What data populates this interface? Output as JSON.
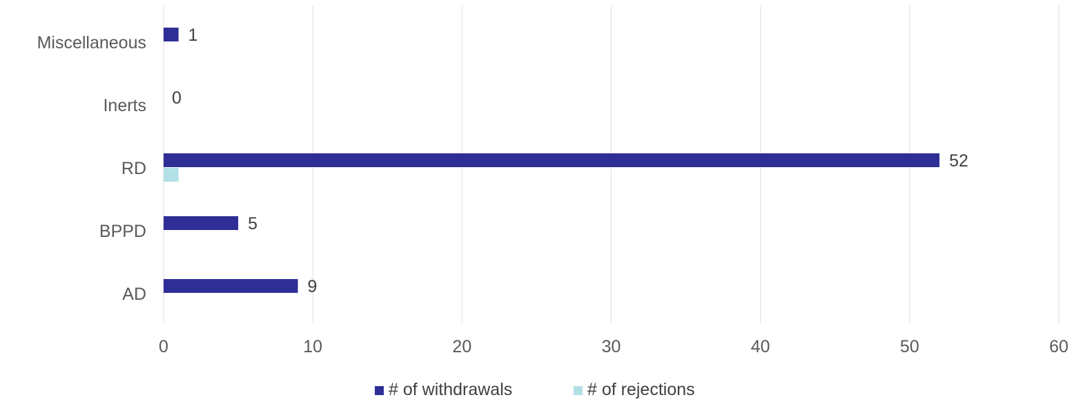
{
  "chart_data": {
    "type": "bar",
    "orientation": "horizontal",
    "categories": [
      "Miscellaneous",
      "Inerts",
      "RD",
      "BPPD",
      "AD"
    ],
    "series": [
      {
        "name": "# of withdrawals",
        "color": "#2e2e96",
        "values": [
          1,
          0,
          52,
          5,
          9
        ],
        "data_labels": [
          "1",
          "0",
          "52",
          "5",
          "9"
        ]
      },
      {
        "name": "# of rejections",
        "color": "#b3e0e6",
        "values": [
          0,
          0,
          1,
          0,
          0
        ],
        "data_labels": []
      }
    ],
    "xlim": [
      0,
      60
    ],
    "xticks": [
      0,
      10,
      20,
      30,
      40,
      50,
      60
    ],
    "grid": "vertical",
    "legend_position": "bottom",
    "title": "",
    "xlabel": "",
    "ylabel": ""
  }
}
